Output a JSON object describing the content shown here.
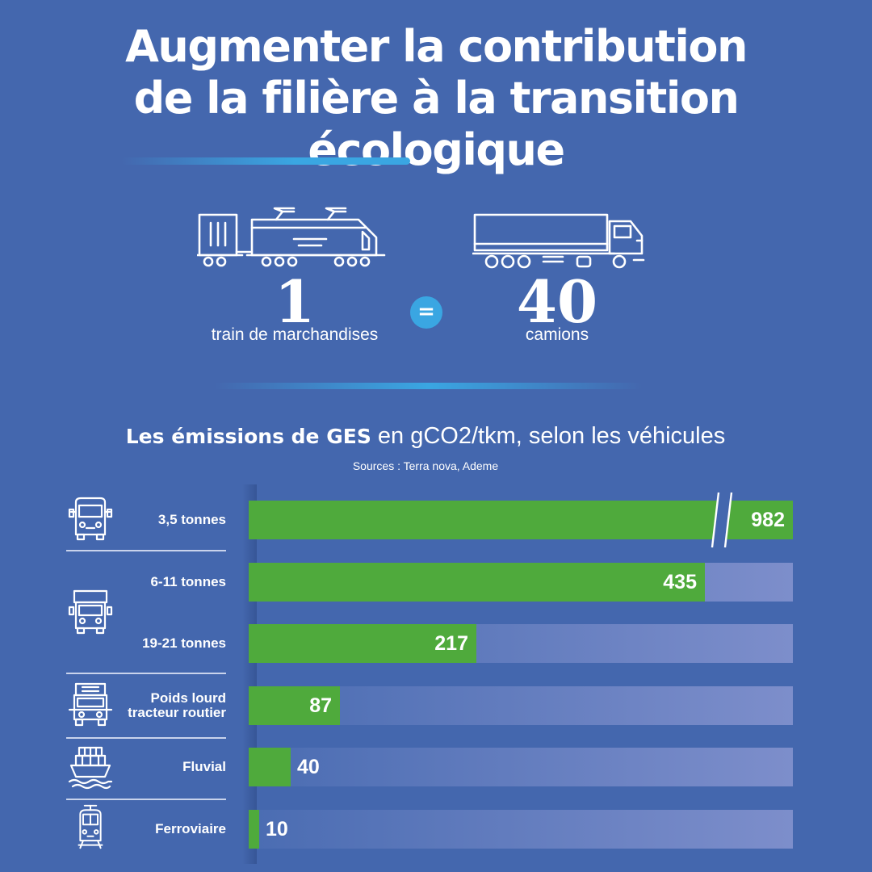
{
  "header": {
    "title_line1": "Augmenter la contribution",
    "title_line2": "de la filière à la transition écologique"
  },
  "comparison": {
    "left_number": "1",
    "left_caption": "train de marchandises",
    "equals": "=",
    "right_number": "40",
    "right_caption": "camions",
    "left_icon": "freight-train-icon",
    "right_icon": "truck-icon"
  },
  "chart_header": {
    "title_bold": "Les émissions de GES",
    "title_rest": " en gCO2/tkm, selon les véhicules",
    "sources": "Sources : Terra nova, Ademe"
  },
  "colors": {
    "background": "#4467ae",
    "bar": "#4faa3c",
    "accent": "#3aa6e2",
    "text": "#ffffff"
  },
  "chart_data": {
    "type": "bar",
    "orientation": "horizontal",
    "title": "Les émissions de GES en gCO2/tkm, selon les véhicules",
    "categories": [
      "3,5 tonnes",
      "6-11 tonnes",
      "19-21 tonnes",
      "Poids lourd tracteur routier",
      "Fluvial",
      "Ferroviaire"
    ],
    "values": [
      982,
      435,
      217,
      87,
      40,
      10
    ],
    "value_labels": [
      "982",
      "435",
      "217",
      "87",
      "40",
      "10"
    ],
    "axis_break_on_first_bar": true,
    "xlim": [
      0,
      500
    ],
    "grid": false,
    "legend": "none",
    "groups": [
      {
        "icon": "van-icon",
        "categories": [
          "3,5 tonnes"
        ]
      },
      {
        "icon": "box-truck-icon",
        "categories": [
          "6-11 tonnes",
          "19-21 tonnes"
        ]
      },
      {
        "icon": "heavy-truck-icon",
        "categories": [
          "Poids lourd tracteur routier"
        ]
      },
      {
        "icon": "barge-icon",
        "categories": [
          "Fluvial"
        ]
      },
      {
        "icon": "train-front-icon",
        "categories": [
          "Ferroviaire"
        ]
      }
    ]
  }
}
